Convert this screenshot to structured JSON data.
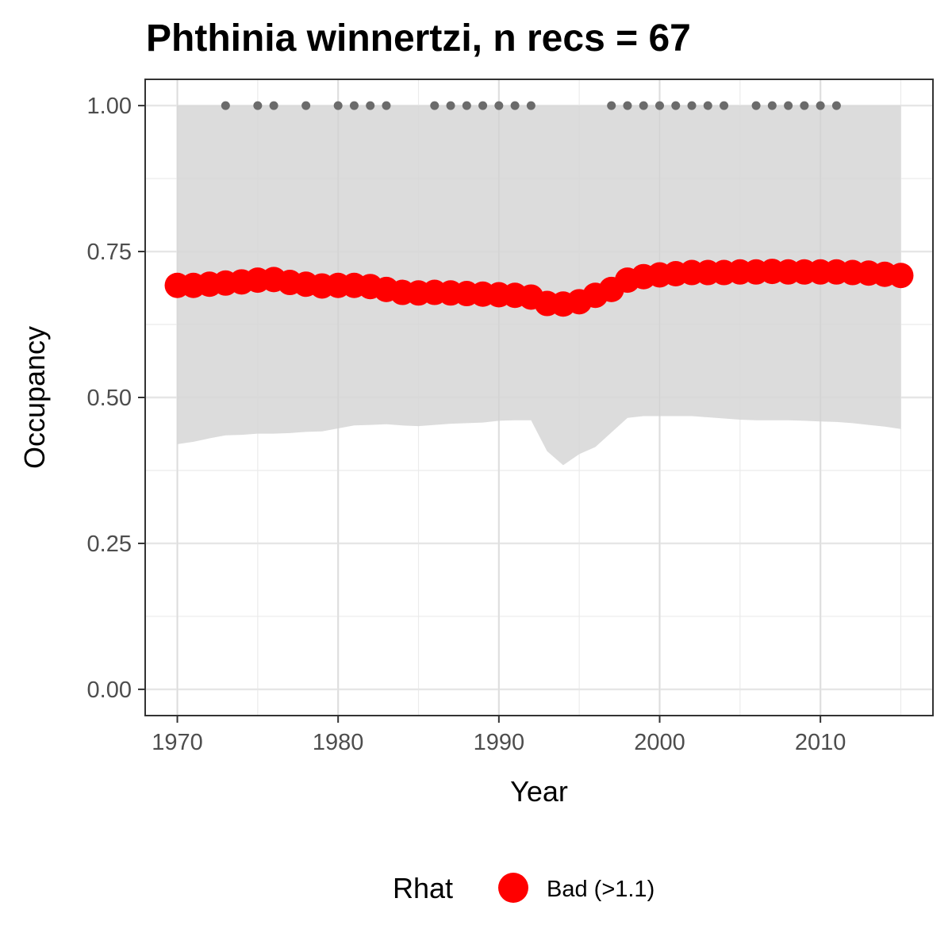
{
  "chart_data": {
    "type": "line",
    "title": "Phthinia winnertzi, n recs = 67",
    "xlabel": "Year",
    "ylabel": "Occupancy",
    "xlim": [
      1968,
      2017
    ],
    "ylim": [
      -0.045,
      1.045
    ],
    "x_ticks": [
      1970,
      1980,
      1990,
      2000,
      2010
    ],
    "x_tick_labels": [
      "1970",
      "1980",
      "1990",
      "2000",
      "2010"
    ],
    "y_ticks": [
      0,
      0.25,
      0.5,
      0.75,
      1.0
    ],
    "y_tick_labels": [
      "0.00",
      "0.25",
      "0.50",
      "0.75",
      "1.00"
    ],
    "grid": true,
    "series": [
      {
        "name": "Bad (>1.1)",
        "color": "#ff0000",
        "x": [
          1970,
          1971,
          1972,
          1973,
          1974,
          1975,
          1976,
          1977,
          1978,
          1979,
          1980,
          1981,
          1982,
          1983,
          1984,
          1985,
          1986,
          1987,
          1988,
          1989,
          1990,
          1991,
          1992,
          1993,
          1994,
          1995,
          1996,
          1997,
          1998,
          1999,
          2000,
          2001,
          2002,
          2003,
          2004,
          2005,
          2006,
          2007,
          2008,
          2009,
          2010,
          2011,
          2012,
          2013,
          2014,
          2015
        ],
        "y": [
          0.692,
          0.692,
          0.694,
          0.696,
          0.698,
          0.701,
          0.702,
          0.697,
          0.694,
          0.691,
          0.692,
          0.692,
          0.69,
          0.685,
          0.68,
          0.679,
          0.68,
          0.679,
          0.678,
          0.677,
          0.676,
          0.675,
          0.672,
          0.661,
          0.66,
          0.664,
          0.675,
          0.685,
          0.701,
          0.707,
          0.71,
          0.712,
          0.714,
          0.714,
          0.714,
          0.715,
          0.715,
          0.716,
          0.715,
          0.715,
          0.715,
          0.715,
          0.714,
          0.713,
          0.711,
          0.709
        ]
      }
    ],
    "ribbon": {
      "color": "#d6d6d6",
      "x": [
        1970,
        1971,
        1972,
        1973,
        1974,
        1975,
        1976,
        1977,
        1978,
        1979,
        1980,
        1981,
        1982,
        1983,
        1984,
        1985,
        1986,
        1987,
        1988,
        1989,
        1990,
        1991,
        1992,
        1993,
        1994,
        1995,
        1996,
        1997,
        1998,
        1999,
        2000,
        2001,
        2002,
        2003,
        2004,
        2005,
        2006,
        2007,
        2008,
        2009,
        2010,
        2011,
        2012,
        2013,
        2014,
        2015
      ],
      "lower": [
        0.42,
        0.424,
        0.43,
        0.435,
        0.436,
        0.438,
        0.438,
        0.439,
        0.441,
        0.442,
        0.447,
        0.452,
        0.453,
        0.454,
        0.452,
        0.451,
        0.453,
        0.455,
        0.456,
        0.457,
        0.46,
        0.461,
        0.461,
        0.408,
        0.384,
        0.403,
        0.415,
        0.44,
        0.465,
        0.468,
        0.468,
        0.468,
        0.468,
        0.466,
        0.464,
        0.462,
        0.461,
        0.461,
        0.461,
        0.46,
        0.459,
        0.458,
        0.456,
        0.453,
        0.45,
        0.446
      ],
      "upper": [
        1.0,
        1.0,
        1.0,
        1.0,
        1.0,
        1.0,
        1.0,
        1.0,
        1.0,
        1.0,
        1.0,
        1.0,
        1.0,
        1.0,
        1.0,
        1.0,
        1.0,
        1.0,
        1.0,
        1.0,
        1.0,
        1.0,
        1.0,
        1.0,
        1.0,
        1.0,
        1.0,
        1.0,
        1.0,
        1.0,
        1.0,
        1.0,
        1.0,
        1.0,
        1.0,
        1.0,
        1.0,
        1.0,
        1.0,
        1.0,
        1.0,
        1.0,
        1.0,
        1.0,
        1.0,
        1.0
      ]
    },
    "records": {
      "color": "#6b6b6b",
      "y": 1.0,
      "x": [
        1973,
        1975,
        1976,
        1978,
        1980,
        1981,
        1982,
        1983,
        1986,
        1987,
        1988,
        1989,
        1990,
        1991,
        1992,
        1997,
        1998,
        1999,
        2000,
        2001,
        2002,
        2003,
        2004,
        2006,
        2007,
        2008,
        2009,
        2010,
        2011
      ]
    },
    "legend": {
      "title": "Rhat",
      "label": "Bad (>1.1)",
      "position": "bottom"
    }
  }
}
